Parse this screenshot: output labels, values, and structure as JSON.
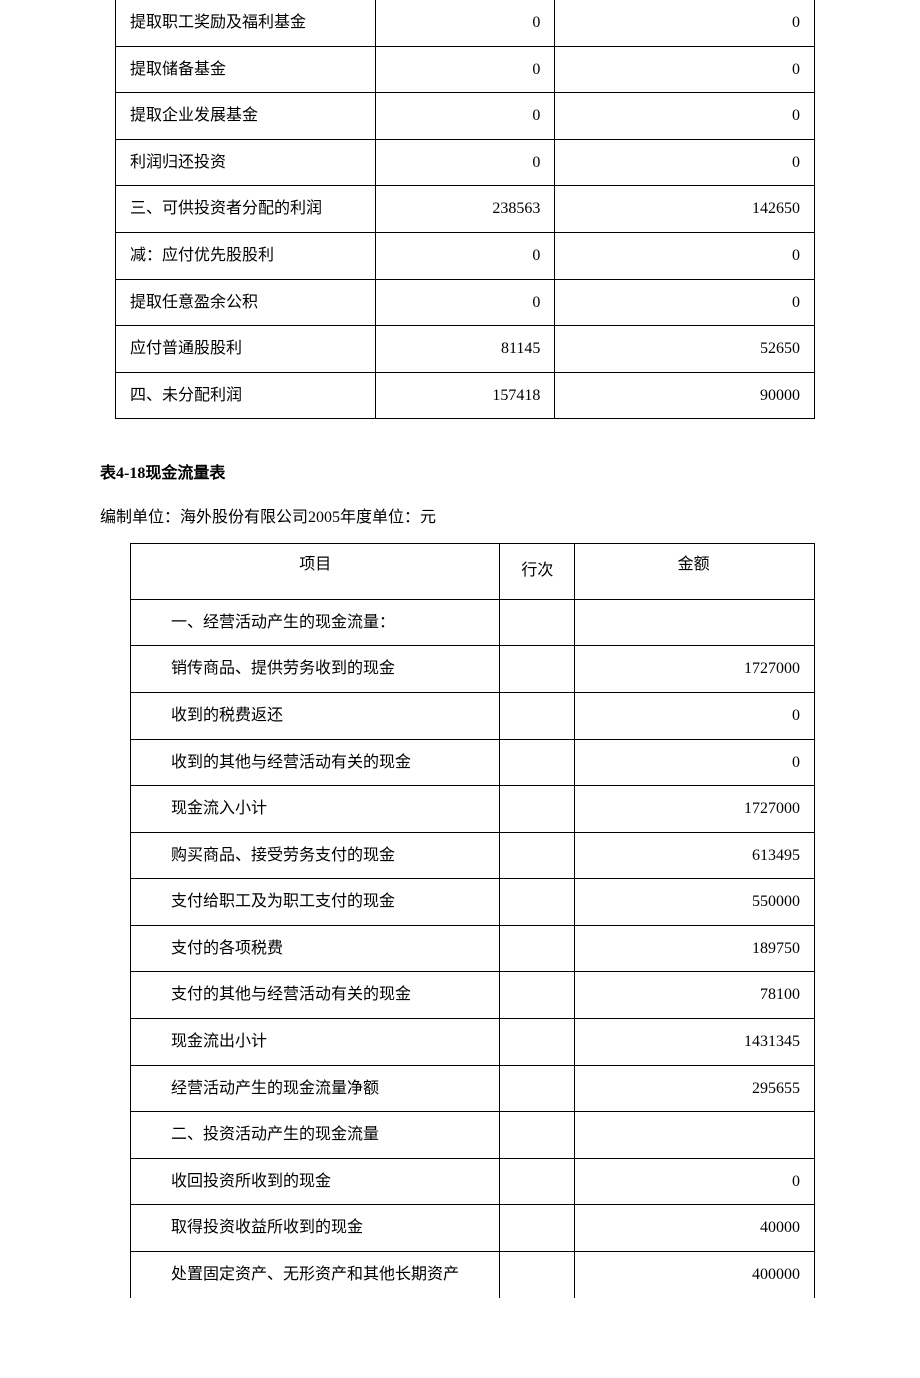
{
  "table1": {
    "rows": [
      {
        "label": "提取职工奖励及福利基金",
        "col2": "0",
        "col3": "0"
      },
      {
        "label": "提取储备基金",
        "col2": "0",
        "col3": "0"
      },
      {
        "label": "提取企业发展基金",
        "col2": "0",
        "col3": "0"
      },
      {
        "label": "利润归还投资",
        "col2": "0",
        "col3": "0"
      },
      {
        "label": "三、可供投资者分配的利润",
        "col2": "238563",
        "col3": "142650"
      },
      {
        "label": "减：应付优先股股利",
        "col2": "0",
        "col3": "0"
      },
      {
        "label": "提取任意盈余公积",
        "col2": "0",
        "col3": "0"
      },
      {
        "label": "应付普通股股利",
        "col2": "81145",
        "col3": "52650"
      },
      {
        "label": "四、未分配利润",
        "col2": "157418",
        "col3": "90000"
      }
    ]
  },
  "section": {
    "title": "表4-18现金流量表",
    "subtitle": "编制单位：海外股份有限公司2005年度单位：元"
  },
  "table2": {
    "headers": {
      "item": "项目",
      "row": "行次",
      "amount": "金额"
    },
    "rows": [
      {
        "item": "一、经营活动产生的现金流量：",
        "row": "",
        "amount": ""
      },
      {
        "item": "销传商品、提供劳务收到的现金",
        "row": "",
        "amount": "1727000"
      },
      {
        "item": "收到的税费返还",
        "row": "",
        "amount": "0"
      },
      {
        "item": "收到的其他与经营活动有关的现金",
        "row": "",
        "amount": "0"
      },
      {
        "item": "现金流入小计",
        "row": "",
        "amount": "1727000"
      },
      {
        "item": "购买商品、接受劳务支付的现金",
        "row": "",
        "amount": "613495"
      },
      {
        "item": "支付给职工及为职工支付的现金",
        "row": "",
        "amount": "550000"
      },
      {
        "item": "支付的各项税费",
        "row": "",
        "amount": "189750"
      },
      {
        "item": "支付的其他与经营活动有关的现金",
        "row": "",
        "amount": "78100"
      },
      {
        "item": "现金流出小计",
        "row": "",
        "amount": "1431345"
      },
      {
        "item": "经营活动产生的现金流量净额",
        "row": "",
        "amount": "295655"
      },
      {
        "item": "二、投资活动产生的现金流量",
        "row": "",
        "amount": ""
      },
      {
        "item": "收回投资所收到的现金",
        "row": "",
        "amount": "0"
      },
      {
        "item": "取得投资收益所收到的现金",
        "row": "",
        "amount": "40000"
      },
      {
        "item": "处置固定资产、无形资产和其他长期资产",
        "row": "",
        "amount": "400000"
      }
    ]
  }
}
